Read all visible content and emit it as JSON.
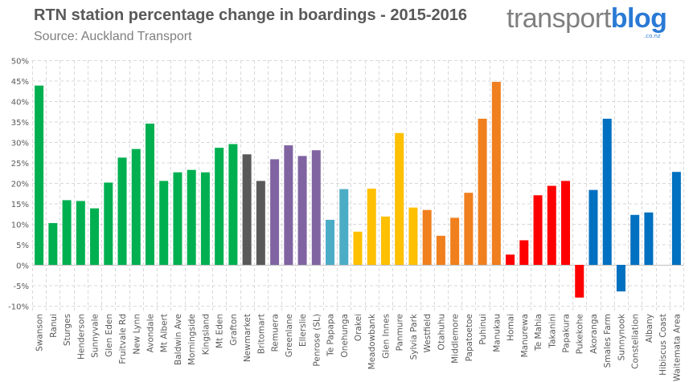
{
  "title": "RTN station percentage change in boardings - 2015-2016",
  "subtitle": "Source: Auckland Transport",
  "logo": {
    "main": "transport",
    "accent": "blog",
    "suffix": ".co.nz"
  },
  "chart_data": {
    "type": "bar",
    "title": "RTN station percentage change in boardings - 2015-2016",
    "xlabel": "",
    "ylabel": "",
    "ylim": [
      -10,
      50
    ],
    "yticks": [
      -10,
      -5,
      0,
      5,
      10,
      15,
      20,
      25,
      30,
      35,
      40,
      45,
      50
    ],
    "ytick_format": "%",
    "grid": true,
    "categories": [
      "Swanson",
      "Ranui",
      "Sturges",
      "Henderson",
      "Sunnyvale",
      "Glen Eden",
      "Fruitvale Rd",
      "New Lynn",
      "Avondale",
      "Mt Albert",
      "Baldwin Ave",
      "Morningside",
      "Kingsland",
      "Mt Eden",
      "Grafton",
      "Newmarket",
      "Britomart",
      "Remuera",
      "Greenlane",
      "Ellerslie",
      "Penrose (SL)",
      "Te Papapa",
      "Onehunga",
      "Orakei",
      "Meadowbank",
      "Glen Innes",
      "Panmure",
      "Sylvia Park",
      "Westfield",
      "Otahuhu",
      "Middlemore",
      "Papatoetoe",
      "Puhinui",
      "Manukau",
      "Homai",
      "Manurewa",
      "Te Mahia",
      "Takanini",
      "Papakura",
      "Pukekohe",
      "Akoranga",
      "Smales Farm",
      "Sunnynook",
      "Constellation",
      "Albany",
      "Hibiscus Coast",
      "Waitemata Area"
    ],
    "values": [
      43.8,
      10.2,
      15.8,
      15.6,
      13.8,
      20.1,
      26.2,
      28.3,
      34.5,
      20.5,
      22.6,
      23.2,
      22.6,
      28.6,
      29.5,
      27.0,
      20.5,
      25.8,
      29.2,
      26.6,
      28.0,
      11.0,
      18.5,
      8.1,
      18.6,
      11.8,
      32.2,
      14.0,
      13.4,
      7.1,
      11.5,
      17.6,
      35.7,
      44.7,
      2.5,
      6.0,
      17.0,
      19.3,
      20.5,
      -8.0,
      18.3,
      35.7,
      -6.5,
      12.2,
      12.8,
      null,
      22.7
    ],
    "groups": [
      "w",
      "w",
      "w",
      "w",
      "w",
      "w",
      "w",
      "w",
      "w",
      "w",
      "w",
      "w",
      "w",
      "w",
      "w",
      "c",
      "c",
      "s",
      "s",
      "s",
      "s",
      "o",
      "o",
      "e",
      "e",
      "e",
      "e",
      "e",
      "e2",
      "e2",
      "e2",
      "e2",
      "e2",
      "e2",
      "s2",
      "s2",
      "s2",
      "s2",
      "s2",
      "s2",
      "n",
      "n",
      "n",
      "n",
      "n",
      "n",
      "n"
    ],
    "colors": {
      "w": "#00b050",
      "c": "#595959",
      "s": "#8064a2",
      "o": "#4bacc6",
      "e": "#ffc000",
      "e2": "#f07f1d",
      "s2": "#ff0000",
      "n": "#0070c0"
    }
  }
}
